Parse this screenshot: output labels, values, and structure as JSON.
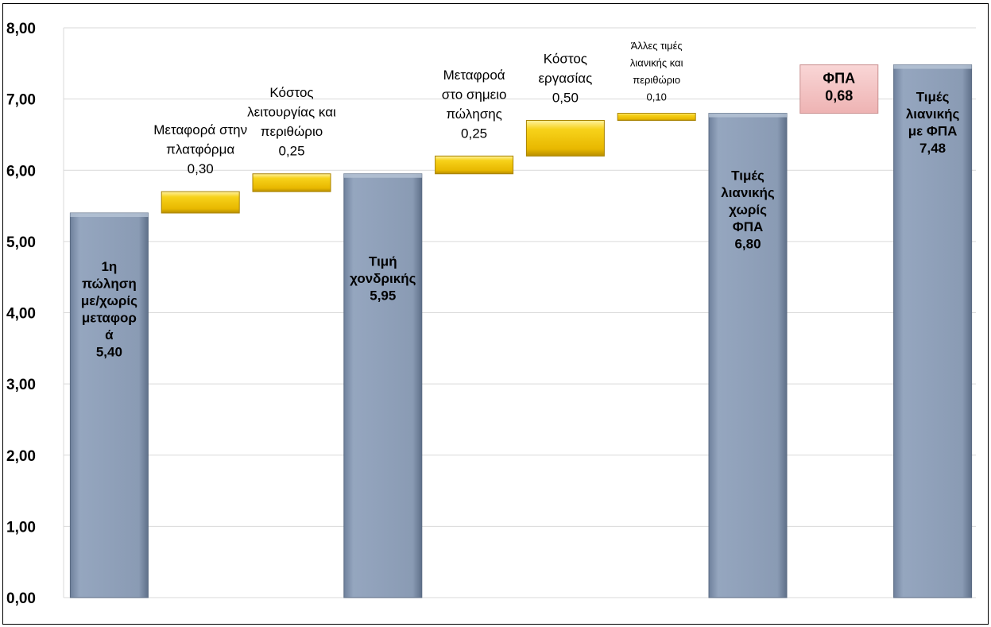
{
  "chart_data": {
    "type": "bar",
    "variant": "waterfall",
    "title": "",
    "xlabel": "",
    "ylabel": "",
    "ylim": [
      0,
      8
    ],
    "yticks": [
      "0,00",
      "1,00",
      "2,00",
      "3,00",
      "4,00",
      "5,00",
      "6,00",
      "7,00",
      "8,00"
    ],
    "grid": true,
    "legend": "none",
    "colors": {
      "total": "#8ea0ba",
      "step": "#f2c500",
      "vat": "#f4c2c2"
    },
    "items": [
      {
        "kind": "total",
        "start": 0,
        "end": 5.4,
        "label_lines": [
          "1η",
          "πώληση",
          "με/χωρίς",
          "μεταφορ",
          "ά",
          "5,40"
        ]
      },
      {
        "kind": "step",
        "start": 5.4,
        "end": 5.7,
        "label_lines": [
          "Μεταφορά στην",
          "πλατφόρμα",
          "0,30"
        ]
      },
      {
        "kind": "step",
        "start": 5.7,
        "end": 5.95,
        "label_lines": [
          "Κόστος",
          "λειτουργίας και",
          "περιθώριο",
          "0,25"
        ]
      },
      {
        "kind": "total",
        "start": 0,
        "end": 5.95,
        "label_lines": [
          "Τιμή",
          "χονδρικής",
          "5,95"
        ]
      },
      {
        "kind": "step",
        "start": 5.95,
        "end": 6.2,
        "label_lines": [
          "Μεταφροά",
          "στο σημειο",
          "πώλησης",
          "0,25"
        ]
      },
      {
        "kind": "step",
        "start": 6.2,
        "end": 6.7,
        "label_lines": [
          "Κόστος",
          "εργασίας",
          "0,50"
        ]
      },
      {
        "kind": "step",
        "start": 6.7,
        "end": 6.8,
        "label_lines": [
          "Άλλες τιμές",
          "λιανικής και",
          "περιθώριο",
          "0,10"
        ]
      },
      {
        "kind": "total",
        "start": 0,
        "end": 6.8,
        "label_lines": [
          "Τιμές",
          "λιανικής",
          "χωρίς",
          "ΦΠΑ",
          "6,80"
        ]
      },
      {
        "kind": "vat",
        "start": 6.8,
        "end": 7.48,
        "label_lines": [
          "ΦΠΑ",
          "0,68"
        ]
      },
      {
        "kind": "total",
        "start": 0,
        "end": 7.48,
        "label_lines": [
          "Τιμές",
          "λιανικής",
          "με ΦΠΑ",
          "7,48"
        ]
      }
    ]
  }
}
